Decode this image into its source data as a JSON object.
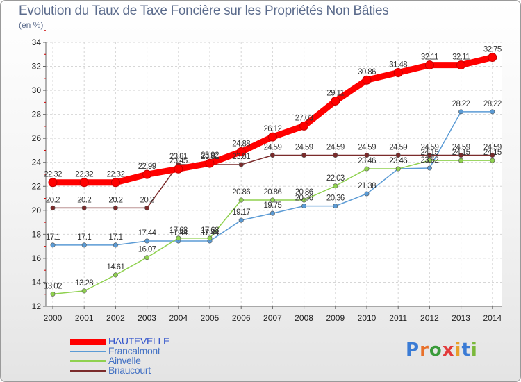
{
  "header": {
    "title": "Evolution du Taux de Taxe Foncière sur les Propriétés Non Bâties",
    "unit": "(en %)"
  },
  "brand": {
    "letters": [
      {
        "ch": "P",
        "color": "#3a7bd5"
      },
      {
        "ch": "r",
        "color": "#e8702a"
      },
      {
        "ch": "o",
        "color": "#3a9b3a"
      },
      {
        "ch": "x",
        "color": "#e23b3b"
      },
      {
        "ch": "i",
        "color": "#e8a02a"
      },
      {
        "ch": "t",
        "color": "#3a7bd5"
      },
      {
        "ch": "i",
        "color": "#7ab83a"
      }
    ]
  },
  "chart_data": {
    "type": "line",
    "title": "Evolution du Taux de Taxe Foncière sur les Propriétés Non Bâties",
    "ylabel": "(en %)",
    "xlabel": "",
    "x": [
      "2000",
      "2001",
      "2002",
      "2003",
      "2004",
      "2005",
      "2006",
      "2007",
      "2008",
      "2009",
      "2010",
      "2011",
      "2012",
      "2013",
      "2014"
    ],
    "ylim": [
      12,
      34
    ],
    "yticks": [
      12,
      14,
      16,
      18,
      20,
      22,
      24,
      26,
      28,
      30,
      32,
      34
    ],
    "grid": true,
    "legend_position": "bottom-left",
    "series": [
      {
        "name": "HAUTEVELLE",
        "color": "#ff0000",
        "width": "thick",
        "values": [
          22.32,
          22.32,
          22.32,
          22.99,
          23.45,
          23.92,
          24.88,
          26.12,
          27.03,
          29.11,
          30.86,
          31.48,
          32.11,
          32.11,
          32.75
        ],
        "labels": [
          "22.32",
          "22.32",
          "22.32",
          "22.99",
          "23.45",
          "23.92",
          "24.88",
          "26.12",
          "27.03",
          "29.11",
          "30.86",
          "31.48",
          "32.11",
          "32.11",
          "32.75"
        ]
      },
      {
        "name": "Francalmont",
        "color": "#5b9bd5",
        "width": "thin",
        "values": [
          17.1,
          17.1,
          17.1,
          17.44,
          17.44,
          17.44,
          19.17,
          19.75,
          20.36,
          20.36,
          21.38,
          23.46,
          23.52,
          28.22,
          28.22
        ],
        "labels": [
          "17.1",
          "17.1",
          "17.1",
          "17.44",
          "17.44",
          "17.44",
          "19.17",
          "19.75",
          "20.36",
          "20.36",
          "21.38",
          "23.46",
          "23.52",
          "28.22",
          "28.22"
        ]
      },
      {
        "name": "Ainvelle",
        "color": "#8fd14f",
        "width": "thin",
        "values": [
          13.02,
          13.28,
          14.61,
          16.07,
          17.68,
          17.68,
          20.86,
          20.86,
          20.86,
          22.03,
          23.46,
          23.46,
          24.15,
          24.15,
          24.15
        ],
        "labels": [
          "13.02",
          "13.28",
          "14.61",
          "16.07",
          "17.68",
          "17.68",
          "20.86",
          "20.86",
          "20.86",
          "22.03",
          "23.46",
          "23.46",
          "24.15",
          "24.15",
          "24.15"
        ]
      },
      {
        "name": "Briaucourt",
        "color": "#7b2b2b",
        "width": "thin",
        "values": [
          20.2,
          20.2,
          20.2,
          20.2,
          23.81,
          23.81,
          23.81,
          24.59,
          24.59,
          24.59,
          24.59,
          24.59,
          24.59,
          24.59,
          24.59
        ],
        "labels": [
          "20.2",
          "20.2",
          "20.2",
          "20.2",
          "23.81",
          "23.81",
          "23.81",
          "24.59",
          "24.59",
          "24.59",
          "24.59",
          "24.59",
          "24.59",
          "24.59",
          "24.59"
        ]
      }
    ]
  }
}
